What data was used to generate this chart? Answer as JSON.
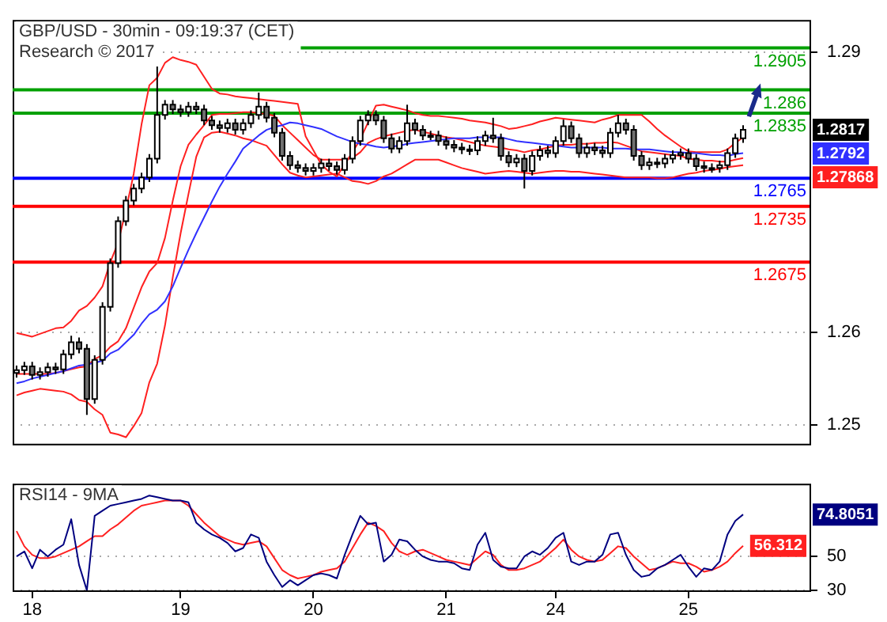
{
  "chart_data": [
    {
      "type": "candlestick",
      "title": "GBP/USD - 30min - 09:19:37 (CET)",
      "subtitle": "Research © 2017",
      "categories": [
        null,
        null,
        "18",
        null,
        null,
        null,
        null,
        null,
        null,
        null,
        null,
        null,
        null,
        null,
        null,
        null,
        null,
        null,
        null,
        null,
        null,
        "19",
        null,
        null,
        null,
        null,
        null,
        null,
        null,
        null,
        null,
        null,
        null,
        null,
        null,
        null,
        null,
        null,
        "20",
        null,
        null,
        null,
        null,
        null,
        null,
        null,
        null,
        null,
        null,
        null,
        null,
        null,
        null,
        null,
        null,
        "21",
        null,
        null,
        null,
        null,
        null,
        null,
        null,
        null,
        null,
        null,
        null,
        null,
        null,
        "24",
        null,
        null,
        null,
        null,
        null,
        null,
        null,
        null,
        null,
        null,
        null,
        null,
        null,
        null,
        null,
        null,
        "25",
        null,
        null,
        null,
        null,
        null,
        null,
        null,
        null,
        null,
        null,
        null,
        null,
        null,
        null,
        null
      ],
      "ohlc": [
        [
          1.2556,
          1.2564,
          1.2551,
          1.2559
        ],
        [
          1.2559,
          1.2568,
          1.2554,
          1.2563
        ],
        [
          1.2563,
          1.2568,
          1.2549,
          1.2554
        ],
        [
          1.2554,
          1.2562,
          1.2549,
          1.2557
        ],
        [
          1.2557,
          1.2567,
          1.2552,
          1.2562
        ],
        [
          1.2562,
          1.2567,
          1.2555,
          1.256
        ],
        [
          1.256,
          1.2581,
          1.2555,
          1.2576
        ],
        [
          1.2576,
          1.2596,
          1.2571,
          1.2589
        ],
        [
          1.2589,
          1.2594,
          1.2577,
          1.2582
        ],
        [
          1.2582,
          1.2587,
          1.2511,
          1.2528
        ],
        [
          1.2528,
          1.2575,
          1.2523,
          1.257
        ],
        [
          1.257,
          1.2632,
          1.2565,
          1.2627
        ],
        [
          1.2627,
          1.2679,
          1.2622,
          1.2674
        ],
        [
          1.2674,
          1.2724,
          1.2669,
          1.2719
        ],
        [
          1.2719,
          1.2746,
          1.2714,
          1.2741
        ],
        [
          1.2741,
          1.2759,
          1.2736,
          1.2754
        ],
        [
          1.2754,
          1.2771,
          1.2749,
          1.2766
        ],
        [
          1.2766,
          1.2791,
          1.2761,
          1.2786
        ],
        [
          1.2786,
          1.2885,
          1.2781,
          1.2833
        ],
        [
          1.2833,
          1.2849,
          1.2828,
          1.2844
        ],
        [
          1.2844,
          1.2849,
          1.2834,
          1.2839
        ],
        [
          1.2839,
          1.2844,
          1.2831,
          1.2836
        ],
        [
          1.2836,
          1.2847,
          1.2831,
          1.2842
        ],
        [
          1.2842,
          1.2847,
          1.2834,
          1.2839
        ],
        [
          1.2839,
          1.2844,
          1.2822,
          1.2827
        ],
        [
          1.2827,
          1.2832,
          1.2817,
          1.2822
        ],
        [
          1.2822,
          1.2827,
          1.2814,
          1.2819
        ],
        [
          1.2819,
          1.2829,
          1.2814,
          1.2824
        ],
        [
          1.2824,
          1.2829,
          1.2812,
          1.2817
        ],
        [
          1.2817,
          1.2829,
          1.2812,
          1.2824
        ],
        [
          1.2824,
          1.2838,
          1.2819,
          1.2833
        ],
        [
          1.2833,
          1.2857,
          1.2828,
          1.2842
        ],
        [
          1.2842,
          1.2847,
          1.2825,
          1.283
        ],
        [
          1.283,
          1.2835,
          1.2809,
          1.2814
        ],
        [
          1.2814,
          1.2819,
          1.2784,
          1.2789
        ],
        [
          1.2789,
          1.2794,
          1.2774,
          1.2779
        ],
        [
          1.2779,
          1.2784,
          1.2771,
          1.2776
        ],
        [
          1.2776,
          1.2781,
          1.2768,
          1.2773
        ],
        [
          1.2773,
          1.2781,
          1.2768,
          1.2776
        ],
        [
          1.2776,
          1.2786,
          1.2771,
          1.2781
        ],
        [
          1.2781,
          1.2786,
          1.2773,
          1.2778
        ],
        [
          1.2778,
          1.2783,
          1.2769,
          1.2774
        ],
        [
          1.2774,
          1.2791,
          1.2769,
          1.2786
        ],
        [
          1.2786,
          1.281,
          1.2781,
          1.2805
        ],
        [
          1.2805,
          1.2832,
          1.28,
          1.2827
        ],
        [
          1.2827,
          1.2838,
          1.2822,
          1.2833
        ],
        [
          1.2833,
          1.2838,
          1.2822,
          1.2827
        ],
        [
          1.2827,
          1.2832,
          1.2803,
          1.2808
        ],
        [
          1.2808,
          1.2813,
          1.2792,
          1.2797
        ],
        [
          1.2797,
          1.281,
          1.2792,
          1.2805
        ],
        [
          1.2805,
          1.2844,
          1.28,
          1.2824
        ],
        [
          1.2824,
          1.2829,
          1.2812,
          1.2817
        ],
        [
          1.2817,
          1.2822,
          1.2806,
          1.2811
        ],
        [
          1.2811,
          1.2816,
          1.2806,
          1.2811
        ],
        [
          1.2811,
          1.2816,
          1.28,
          1.2805
        ],
        [
          1.2805,
          1.281,
          1.2796,
          1.2801
        ],
        [
          1.2801,
          1.2806,
          1.2793,
          1.2798
        ],
        [
          1.2798,
          1.2803,
          1.2791,
          1.2796
        ],
        [
          1.2796,
          1.2801,
          1.279,
          1.2795
        ],
        [
          1.2795,
          1.281,
          1.279,
          1.2805
        ],
        [
          1.2805,
          1.2816,
          1.28,
          1.2811
        ],
        [
          1.2811,
          1.283,
          1.2803,
          1.2808
        ],
        [
          1.2808,
          1.2813,
          1.2784,
          1.2789
        ],
        [
          1.2789,
          1.2794,
          1.2777,
          1.2782
        ],
        [
          1.2782,
          1.2791,
          1.2777,
          1.2786
        ],
        [
          1.2786,
          1.2791,
          1.2754,
          1.2773
        ],
        [
          1.2773,
          1.2794,
          1.2768,
          1.2789
        ],
        [
          1.2789,
          1.28,
          1.2784,
          1.2795
        ],
        [
          1.2795,
          1.28,
          1.2787,
          1.2792
        ],
        [
          1.2792,
          1.281,
          1.2787,
          1.2805
        ],
        [
          1.2805,
          1.2828,
          1.28,
          1.2821
        ],
        [
          1.2821,
          1.2826,
          1.2803,
          1.2808
        ],
        [
          1.2808,
          1.2813,
          1.2787,
          1.2792
        ],
        [
          1.2792,
          1.2803,
          1.2787,
          1.2798
        ],
        [
          1.2798,
          1.2803,
          1.279,
          1.2795
        ],
        [
          1.2795,
          1.28,
          1.2787,
          1.2792
        ],
        [
          1.2792,
          1.2819,
          1.2787,
          1.2814
        ],
        [
          1.2814,
          1.2833,
          1.2809,
          1.2824
        ],
        [
          1.2824,
          1.2829,
          1.2812,
          1.2817
        ],
        [
          1.2817,
          1.2822,
          1.2784,
          1.2789
        ],
        [
          1.2789,
          1.2794,
          1.2774,
          1.2779
        ],
        [
          1.2779,
          1.2787,
          1.2774,
          1.2782
        ],
        [
          1.2782,
          1.2787,
          1.2776,
          1.2781
        ],
        [
          1.2781,
          1.2791,
          1.2776,
          1.2786
        ],
        [
          1.2786,
          1.2795,
          1.2781,
          1.279
        ],
        [
          1.279,
          1.2797,
          1.2785,
          1.2792
        ],
        [
          1.2792,
          1.2797,
          1.2781,
          1.2786
        ],
        [
          1.2786,
          1.2791,
          1.2773,
          1.2778
        ],
        [
          1.2778,
          1.2783,
          1.2771,
          1.2776
        ],
        [
          1.2776,
          1.2781,
          1.2771,
          1.2776
        ],
        [
          1.2776,
          1.2784,
          1.2771,
          1.2779
        ],
        [
          1.2779,
          1.2797,
          1.2774,
          1.2792
        ],
        [
          1.2792,
          1.2813,
          1.2787,
          1.2808
        ],
        [
          1.2808,
          1.2822,
          1.2803,
          1.2817
        ],
        null,
        null,
        null,
        null,
        null,
        null,
        null,
        null
      ],
      "series": [
        {
          "type": "line",
          "color": "#3030ff",
          "values": [
            1.2545,
            1.2547,
            1.255,
            1.2552,
            1.2554,
            1.2556,
            1.2558,
            1.2561,
            1.2564,
            1.2565,
            1.2567,
            1.2569,
            1.2577,
            1.2581,
            1.2589,
            1.2597,
            1.2609,
            1.2619,
            1.2624,
            1.2633,
            1.2649,
            1.2669,
            1.2688,
            1.2706,
            1.2723,
            1.274,
            1.2756,
            1.277,
            1.2783,
            1.2797,
            1.2804,
            1.2811,
            1.2817,
            1.282,
            1.2822,
            1.2825,
            1.2824,
            1.2822,
            1.282,
            1.2818,
            1.2814,
            1.281,
            1.2807,
            1.2804,
            1.2802,
            1.2801,
            1.2799,
            1.2798,
            1.2799,
            1.28,
            1.2802,
            1.2803,
            1.2804,
            1.2805,
            1.2806,
            1.2807,
            1.2808,
            1.2808,
            1.2808,
            1.2809,
            1.2809,
            1.2809,
            1.2809,
            1.2807,
            1.2805,
            1.2804,
            1.2803,
            1.2802,
            1.2801,
            1.28,
            1.2799,
            1.2798,
            1.2798,
            1.2798,
            1.2798,
            1.2798,
            1.2797,
            1.2797,
            1.2797,
            1.2796,
            1.2796,
            1.2796,
            1.2795,
            1.2794,
            1.2793,
            1.2793,
            1.2792,
            1.2792,
            1.2791,
            1.279,
            1.279,
            1.2789,
            1.2791,
            1.2792,
            null,
            null,
            null,
            null,
            null,
            null,
            null,
            null
          ]
        },
        {
          "type": "line",
          "color": "#ff2020",
          "values": [
            1.2599,
            1.2597,
            1.2595,
            1.2598,
            1.2601,
            1.2604,
            1.2605,
            1.2612,
            1.2623,
            1.2628,
            1.2637,
            1.2649,
            1.2675,
            1.2696,
            1.2731,
            1.277,
            1.2823,
            1.2865,
            1.2873,
            1.2889,
            1.2895,
            1.2892,
            1.289,
            1.2887,
            1.2874,
            1.2861,
            1.2856,
            1.2855,
            1.2853,
            1.2852,
            1.2851,
            1.285,
            1.2849,
            1.2848,
            1.2847,
            1.2846,
            1.2845,
            1.281,
            1.2795,
            1.278,
            1.2772,
            1.2767,
            1.278,
            1.2793,
            1.2807,
            1.2825,
            1.2843,
            1.2844,
            1.2842,
            1.284,
            1.2838,
            1.2835,
            1.2833,
            1.2832,
            1.2832,
            1.2831,
            1.283,
            1.2829,
            1.2827,
            1.2826,
            1.2825,
            1.2823,
            1.2821,
            1.2818,
            1.2819,
            1.2821,
            1.2823,
            1.2826,
            1.2828,
            1.283,
            1.2829,
            1.2828,
            1.2827,
            1.2826,
            1.2825,
            1.2828,
            1.283,
            1.2833,
            1.2833,
            1.2833,
            1.2833,
            1.2826,
            1.2818,
            1.2811,
            1.2805,
            1.2799,
            1.2794,
            1.2793,
            1.2793,
            1.2793,
            1.2793,
            1.2796,
            1.2803,
            1.2809,
            null,
            null,
            null,
            null,
            null,
            null,
            null,
            null
          ]
        },
        {
          "type": "line",
          "color": "#ff2020",
          "values": [
            1.2555,
            1.2555,
            1.2555,
            1.2555,
            1.2555,
            1.2556,
            1.2558,
            1.256,
            1.2562,
            1.2563,
            1.2571,
            1.2575,
            1.2584,
            1.259,
            1.2604,
            1.2626,
            1.2648,
            1.2665,
            1.2674,
            1.2701,
            1.2741,
            1.2778,
            1.2801,
            1.2812,
            1.2822,
            1.2833,
            1.2834,
            1.2834,
            1.2835,
            1.2836,
            1.2836,
            1.2835,
            1.2834,
            1.2832,
            1.2822,
            1.2814,
            1.2806,
            1.2798,
            1.279,
            1.2785,
            1.2785,
            1.2785,
            1.2785,
            1.2787,
            1.2793,
            1.2803,
            1.2807,
            1.281,
            1.2812,
            1.2814,
            1.2816,
            1.2817,
            1.2815,
            1.2813,
            1.2811,
            1.2809,
            1.2808,
            1.2806,
            1.2804,
            1.2802,
            1.28,
            1.2799,
            1.2798,
            1.2796,
            1.2795,
            1.2793,
            1.2795,
            1.2796,
            1.2798,
            1.28,
            1.2801,
            1.2801,
            1.2802,
            1.2802,
            1.2803,
            1.2803,
            1.2804,
            1.2803,
            1.28,
            1.2797,
            1.2794,
            1.2793,
            1.2792,
            1.2791,
            1.279,
            1.2789,
            1.2786,
            1.2785,
            1.2784,
            1.2784,
            1.2783,
            1.2783,
            1.2785,
            1.27868,
            null,
            null,
            null,
            null,
            null,
            null,
            null,
            null
          ]
        },
        {
          "type": "line",
          "color": "#ff2020",
          "values": [
            1.2532,
            1.2535,
            1.2537,
            1.2539,
            1.2538,
            1.2537,
            1.2536,
            1.2533,
            1.2527,
            1.2525,
            1.2517,
            1.2511,
            1.2492,
            1.249,
            1.2487,
            1.2499,
            1.2513,
            1.2546,
            1.2566,
            1.2607,
            1.2659,
            1.2706,
            1.2748,
            1.2788,
            1.2809,
            1.2814,
            1.2815,
            1.2813,
            1.2811,
            1.2808,
            1.2806,
            1.2803,
            1.28,
            1.279,
            1.278,
            1.2771,
            1.2768,
            1.2766,
            1.2767,
            1.2768,
            1.2769,
            1.277,
            1.2766,
            1.2762,
            1.2761,
            1.2759,
            1.2762,
            1.2767,
            1.277,
            1.2775,
            1.278,
            1.2785,
            1.2785,
            1.2785,
            1.2785,
            1.2782,
            1.2779,
            1.2776,
            1.2774,
            1.2772,
            1.277,
            1.2771,
            1.2772,
            1.2773,
            1.2772,
            1.2771,
            1.277,
            1.2771,
            1.2772,
            1.2773,
            1.2773,
            1.2772,
            1.2772,
            1.2771,
            1.277,
            1.2769,
            1.2768,
            1.2767,
            1.2766,
            1.2766,
            1.2766,
            1.2766,
            1.2765,
            1.2765,
            1.2766,
            1.2768,
            1.277,
            1.2771,
            1.2773,
            1.2774,
            1.2775,
            1.2777,
            1.2778,
            1.2779,
            null,
            null,
            null,
            null,
            null,
            null,
            null,
            null
          ]
        }
      ],
      "ylim": [
        1.248,
        1.2935
      ],
      "yticks": [
        1.25,
        1.26,
        1.29
      ],
      "tick_labels": "y",
      "grid": "y",
      "legend": false,
      "ref_lines": [
        {
          "axis": "y",
          "value": 1.2905,
          "label": "1.2905",
          "color": "#00a000"
        },
        {
          "axis": "y",
          "value": 1.286,
          "label": "1.286",
          "color": "#00a000"
        },
        {
          "axis": "y",
          "value": 1.2835,
          "label": "1.2835",
          "color": "#00a000"
        },
        {
          "axis": "y",
          "value": 1.2765,
          "label": "1.2765",
          "color": "#0000ff"
        },
        {
          "axis": "y",
          "value": 1.2735,
          "label": "1.2735",
          "color": "#ff0000"
        },
        {
          "axis": "y",
          "value": 1.2675,
          "label": "1.2675",
          "color": "#ff0000"
        }
      ],
      "annotations": [
        {
          "text": "1.2817",
          "y": 1.2817
        },
        {
          "text": "1.2792",
          "y": 1.2792
        },
        "1.27868"
      ]
    },
    {
      "type": "line",
      "title": "RSI14 - 9MA",
      "categories": [
        null,
        null,
        "18",
        null,
        null,
        null,
        null,
        null,
        null,
        null,
        null,
        null,
        null,
        null,
        null,
        null,
        null,
        null,
        null,
        null,
        null,
        "19",
        null,
        null,
        null,
        null,
        null,
        null,
        null,
        null,
        null,
        null,
        null,
        null,
        null,
        null,
        null,
        null,
        "20",
        null,
        null,
        null,
        null,
        null,
        null,
        null,
        null,
        null,
        null,
        null,
        null,
        null,
        null,
        null,
        null,
        "21",
        null,
        null,
        null,
        null,
        null,
        null,
        null,
        null,
        null,
        null,
        null,
        null,
        null,
        "24",
        null,
        null,
        null,
        null,
        null,
        null,
        null,
        null,
        null,
        null,
        null,
        null,
        null,
        null,
        null,
        null,
        "25",
        null,
        null,
        null,
        null,
        null,
        null,
        null,
        null,
        null,
        null,
        null,
        null,
        null,
        null,
        null
      ],
      "series": [
        {
          "color": "#000080",
          "values": [
            50,
            53,
            43,
            54,
            50,
            54,
            57,
            72,
            45,
            30,
            74,
            77,
            80,
            81,
            82,
            83,
            84,
            86,
            85,
            84,
            83,
            83,
            82,
            70,
            66,
            63,
            61,
            58,
            53,
            55,
            63,
            61,
            47,
            39,
            32,
            36,
            33,
            36,
            39,
            40,
            39,
            37,
            51,
            63,
            74,
            69,
            70,
            47,
            51,
            60,
            59,
            54,
            50,
            48,
            47,
            47,
            46,
            43,
            42,
            57,
            64,
            48,
            44,
            43,
            43,
            50,
            53,
            51,
            55,
            61,
            64,
            47,
            45,
            47,
            47,
            51,
            63,
            64,
            51,
            42,
            38,
            39,
            43,
            45,
            48,
            51,
            44,
            38,
            43,
            42,
            47,
            63,
            71,
            74.8051,
            null,
            null,
            null,
            null,
            null,
            null,
            null,
            null
          ]
        },
        {
          "color": "#ff2020",
          "values": [
            65,
            56,
            51,
            49,
            49,
            50,
            52,
            54,
            56,
            59,
            62,
            62,
            66,
            69,
            73,
            77,
            80,
            81,
            82,
            83,
            83,
            83,
            80,
            75,
            70,
            66,
            62,
            60,
            58,
            57,
            58,
            59,
            56,
            49,
            42,
            39,
            37,
            38,
            39,
            41,
            42,
            43,
            47,
            55,
            63,
            70,
            68,
            65,
            58,
            53,
            51,
            53,
            54,
            52,
            50,
            48,
            47,
            46,
            45,
            49,
            53,
            51,
            45,
            42,
            42,
            43,
            45,
            47,
            51,
            55,
            60,
            54,
            50,
            48,
            47,
            48,
            52,
            56,
            55,
            50,
            46,
            42,
            43,
            45,
            47,
            46,
            46,
            44,
            41,
            42,
            44,
            47,
            52,
            56.312,
            null,
            null,
            null,
            null,
            null,
            null,
            null,
            null
          ]
        }
      ],
      "ylim": [
        30,
        93
      ],
      "yticks": [
        30,
        50
      ],
      "grid": "y",
      "legend": false,
      "annotations": [
        {
          "text": "74.8051",
          "y": 74.8051
        },
        {
          "text": "56.312",
          "y": 56.312
        }
      ]
    }
  ]
}
